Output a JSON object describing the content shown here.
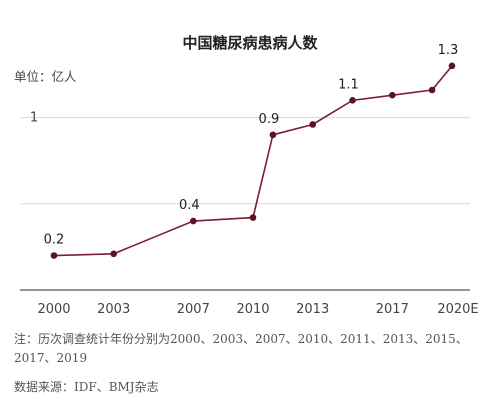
{
  "chart_data": {
    "type": "line",
    "title": "中国糖尿病患病人数",
    "unit_label": "单位：亿人",
    "xlabel": "",
    "ylabel": "",
    "x_ticks": [
      "2000",
      "2003",
      "2007",
      "2010",
      "2013",
      "2017",
      "2020E"
    ],
    "y_ticks": [
      {
        "value": 1,
        "label": "1"
      }
    ],
    "ylim": [
      0,
      1.45
    ],
    "grid": true,
    "legend": "none",
    "series": [
      {
        "color": "#7a2030",
        "points": [
          {
            "x": 2000,
            "y": 0.2,
            "label": "0.2"
          },
          {
            "x": 2003,
            "y": 0.21
          },
          {
            "x": 2007,
            "y": 0.4,
            "label": "0.4"
          },
          {
            "x": 2010,
            "y": 0.42
          },
          {
            "x": 2011,
            "y": 0.9,
            "label": "0.9"
          },
          {
            "x": 2013,
            "y": 0.96
          },
          {
            "x": 2015,
            "y": 1.1,
            "label": "1.1"
          },
          {
            "x": 2017,
            "y": 1.13
          },
          {
            "x": 2019,
            "y": 1.16
          },
          {
            "x": 2020,
            "y": 1.3,
            "label": "1.3"
          }
        ]
      }
    ]
  },
  "notes": {
    "note_text": "注：历次调查统计年份分别为2000、2003、2007、2010、2011、2013、2015、2017、2019",
    "source_text": "数据来源：IDF、BMJ杂志"
  }
}
